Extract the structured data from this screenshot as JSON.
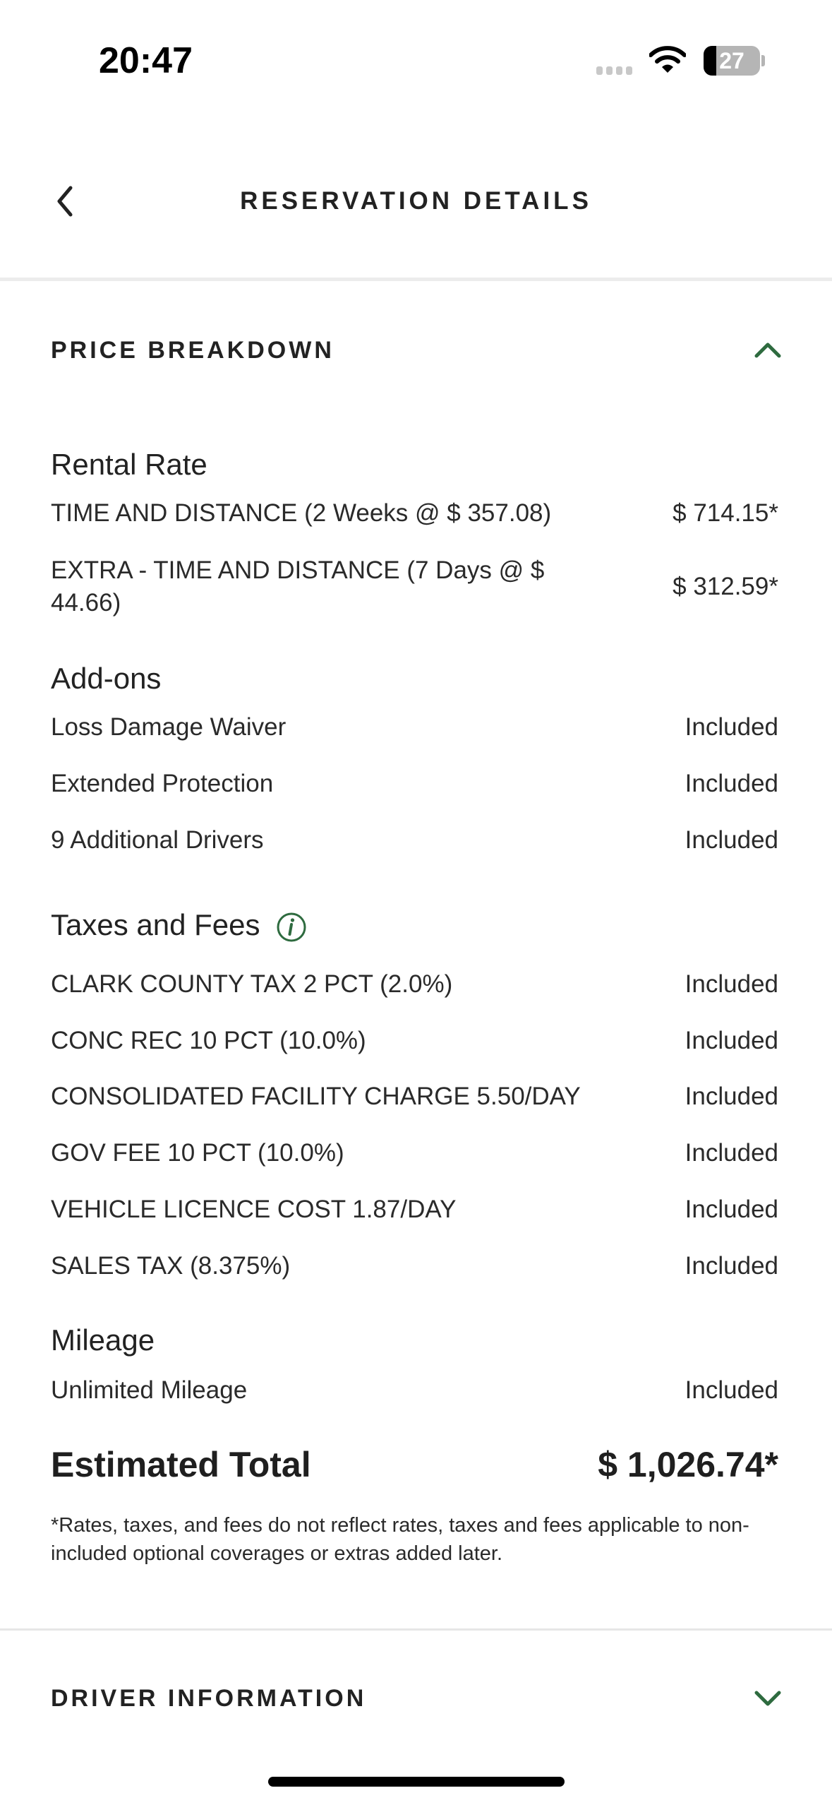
{
  "status_bar": {
    "time": "20:47",
    "battery": "27"
  },
  "header": {
    "title": "RESERVATION DETAILS",
    "back_icon": "chevron-left-icon"
  },
  "price_breakdown": {
    "title": "PRICE BREAKDOWN",
    "expanded": true,
    "rental_rate": {
      "title": "Rental Rate",
      "items": [
        {
          "label": "TIME AND DISTANCE (2 Weeks @ $ 357.08)",
          "value": "$ 714.15*"
        },
        {
          "label": "EXTRA - TIME AND DISTANCE (7 Days @ $ 44.66)",
          "value": "$ 312.59*"
        }
      ]
    },
    "addons": {
      "title": "Add-ons",
      "items": [
        {
          "label": "Loss Damage Waiver",
          "value": "Included"
        },
        {
          "label": "Extended Protection",
          "value": "Included"
        },
        {
          "label": "9 Additional Drivers",
          "value": "Included"
        }
      ]
    },
    "taxes": {
      "title": "Taxes and Fees",
      "items": [
        {
          "label": "CLARK COUNTY TAX 2 PCT (2.0%)",
          "value": "Included"
        },
        {
          "label": "CONC REC 10 PCT (10.0%)",
          "value": "Included"
        },
        {
          "label": "CONSOLIDATED FACILITY CHARGE 5.50/DAY",
          "value": "Included"
        },
        {
          "label": "GOV FEE 10 PCT (10.0%)",
          "value": "Included"
        },
        {
          "label": "VEHICLE LICENCE COST 1.87/DAY",
          "value": "Included"
        },
        {
          "label": "SALES TAX (8.375%)",
          "value": "Included"
        }
      ]
    },
    "mileage": {
      "title": "Mileage",
      "items": [
        {
          "label": "Unlimited Mileage",
          "value": "Included"
        }
      ]
    },
    "total": {
      "label": "Estimated Total",
      "value": "$ 1,026.74*"
    },
    "footnote": "*Rates, taxes, and fees do not reflect rates, taxes and fees applicable to non-included optional coverages or extras added later."
  },
  "driver_information": {
    "title": "DRIVER INFORMATION",
    "expanded": false
  },
  "colors": {
    "accent": "#2e6b3f",
    "text": "#1f1f1f"
  }
}
